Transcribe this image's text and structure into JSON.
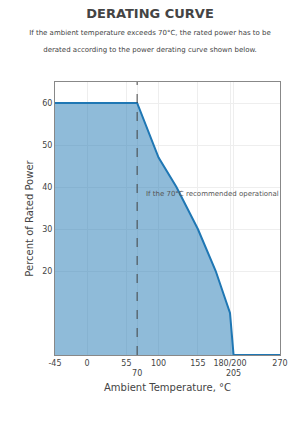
{
  "chart_data": {
    "type": "area",
    "title": "DERATING CURVE",
    "subtitle": "If the ambient temperature exceeds 70°C, the rated power has to be\nderated according to the power derating curve shown below.",
    "x_label": "Ambient Temperature, °C",
    "y_label": "Percent of Rated Power",
    "x": [
      -45,
      0,
      55,
      70,
      100,
      125,
      155,
      180,
      200,
      205,
      270
    ],
    "values": [
      60,
      60,
      60,
      60,
      47,
      40,
      30,
      20,
      10,
      0,
      0
    ],
    "xlim": [
      -45,
      270
    ],
    "xticks": [
      -45,
      0,
      55,
      70,
      100,
      155,
      {
        "value": 200,
        "label": "180/200"
      },
      205,
      270
    ],
    "ylim": [
      0,
      65
    ],
    "yticks": [
      20,
      30,
      40,
      50,
      60
    ],
    "grid": true,
    "vlines": [
      {
        "x": 70,
        "line_style": "dashed"
      }
    ],
    "annotations": [
      {
        "x": 80,
        "y": 37,
        "text": "If the 70°C recommended operational"
      }
    ]
  }
}
